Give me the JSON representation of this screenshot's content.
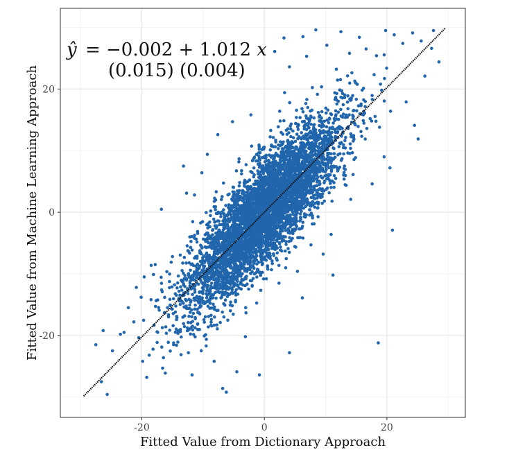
{
  "chart_data": {
    "type": "scatter",
    "title": "",
    "xlabel": "Fitted Value from Dictionary Approach",
    "ylabel": "Fitted Value from Machine Learning Approach",
    "xlim": [
      -33.3,
      32.8
    ],
    "ylim": [
      -33.3,
      33.1
    ],
    "x_ticks": [
      -20,
      0,
      20
    ],
    "y_ticks": [
      -20,
      0,
      20
    ],
    "x_tick_labels": [
      "-20",
      "0",
      "20"
    ],
    "y_tick_labels": [
      "-20",
      "0",
      "20"
    ],
    "grid": true,
    "point_color": "#2166ac",
    "line_color": "#111111",
    "regression": {
      "intercept": -0.002,
      "slope": 1.012,
      "intercept_se": 0.015,
      "slope_se": 0.004,
      "x_range": [
        -29.5,
        29.5
      ]
    },
    "annotation": {
      "equation_lhs": "ŷ",
      "equation_rest": "= −0.002 + 1.012 ",
      "equation_var": "x",
      "standard_errors": "(0.015)  (0.004)"
    },
    "outlier_points": [
      [
        -27.5,
        -21.5
      ],
      [
        -26.3,
        -19.2
      ],
      [
        -24.8,
        -22.5
      ],
      [
        -23.5,
        -19.8
      ],
      [
        -22.2,
        -15.5
      ],
      [
        -21.3,
        -17.8
      ],
      [
        -20.9,
        -12.2
      ],
      [
        -20.1,
        -13.8
      ],
      [
        -19.6,
        -10.5
      ],
      [
        -19.2,
        -26.8
      ],
      [
        -18.5,
        -14.2
      ],
      [
        -18.1,
        -10.1
      ],
      [
        -17.4,
        -19.5
      ],
      [
        -16.6,
        -25.3
      ],
      [
        -16.1,
        -18.6
      ],
      [
        -15.2,
        -8.1
      ],
      [
        -14.8,
        -21.2
      ],
      [
        -13.9,
        -14.1
      ],
      [
        -13.2,
        7.5
      ],
      [
        -12.4,
        -22.8
      ],
      [
        -11.8,
        -26.4
      ],
      [
        -10.9,
        -18.2
      ],
      [
        -9.5,
        -21.7
      ],
      [
        -8.2,
        -24.2
      ],
      [
        -6.8,
        -28.6
      ],
      [
        -6.2,
        -29.2
      ],
      [
        -4.5,
        -25.9
      ],
      [
        -3.1,
        -20.2
      ],
      [
        -0.8,
        -26.4
      ],
      [
        -16.8,
        0.5
      ],
      [
        -12.7,
        3.1
      ],
      [
        -9.3,
        9.4
      ],
      [
        -7.6,
        12.6
      ],
      [
        -5.2,
        14.7
      ],
      [
        -2.2,
        15.8
      ],
      [
        2.5,
        16.4
      ],
      [
        3.3,
        19.4
      ],
      [
        4.1,
        23.6
      ],
      [
        3.2,
        28.3
      ],
      [
        1.7,
        26.1
      ],
      [
        6.3,
        28.5
      ],
      [
        6.9,
        25.3
      ],
      [
        8.4,
        29.6
      ],
      [
        10.2,
        27.1
      ],
      [
        12.5,
        29.3
      ],
      [
        13.9,
        25.8
      ],
      [
        15.5,
        28.4
      ],
      [
        16.6,
        26.5
      ],
      [
        18.3,
        25.4
      ],
      [
        19.8,
        29.5
      ],
      [
        21.2,
        28.8
      ],
      [
        22.6,
        27.4
      ],
      [
        24.2,
        29.1
      ],
      [
        25.6,
        27.8
      ],
      [
        26.2,
        22.1
      ],
      [
        27.3,
        26.6
      ],
      [
        28.5,
        24.4
      ],
      [
        27.6,
        29.5
      ],
      [
        24.5,
        14.1
      ],
      [
        20.6,
        16.4
      ],
      [
        19.6,
        21.7
      ],
      [
        18.8,
        13.8
      ],
      [
        20.5,
        7.2
      ],
      [
        17.6,
        4.6
      ],
      [
        11.2,
        -10.2
      ],
      [
        7.6,
        -5.3
      ],
      [
        5.4,
        -9.6
      ],
      [
        6.2,
        -13.9
      ],
      [
        4.1,
        -22.8
      ],
      [
        18.6,
        -21.2
      ],
      [
        20.9,
        -2.9
      ],
      [
        25.1,
        11.9
      ],
      [
        14.1,
        2.1
      ],
      [
        10.9,
        -3.6
      ],
      [
        9.6,
        -6.8
      ],
      [
        -26.6,
        -27.5
      ],
      [
        -22.9,
        -19.5
      ],
      [
        -11.4,
        2.8
      ],
      [
        -10.2,
        6.4
      ],
      [
        -17.8,
        -8.5
      ]
    ]
  }
}
